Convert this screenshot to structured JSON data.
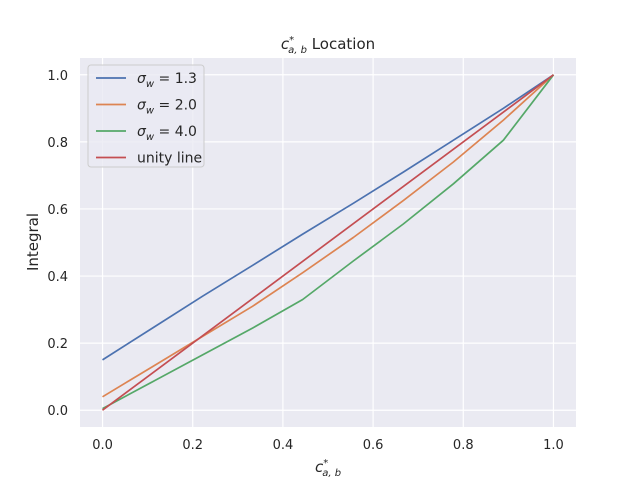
{
  "chart_data": {
    "type": "line",
    "title": {
      "base": "c",
      "sup": "*",
      "sub": "a, b",
      "rest": " Location"
    },
    "xlabel": {
      "base": "c",
      "sup": "*",
      "sub": "a, b"
    },
    "ylabel": "Integral",
    "xlim": [
      -0.05,
      1.05
    ],
    "ylim": [
      -0.05,
      1.05
    ],
    "xticks": [
      0.0,
      0.2,
      0.4,
      0.6,
      0.8,
      1.0
    ],
    "xtick_labels": [
      "0.0",
      "0.2",
      "0.4",
      "0.6",
      "0.8",
      "1.0"
    ],
    "yticks": [
      0.0,
      0.2,
      0.4,
      0.6,
      0.8,
      1.0
    ],
    "ytick_labels": [
      "0.0",
      "0.2",
      "0.4",
      "0.6",
      "0.8",
      "1.0"
    ],
    "grid": true,
    "legend_position": "top-left",
    "background_color": "#eaeaf2",
    "grid_color": "#ffffff",
    "series": [
      {
        "name": "σw = 1.3",
        "legend": {
          "greek": "σ",
          "sub": "w",
          "rest": " = 1.3"
        },
        "color": "#4c72b0",
        "x": [
          0.0,
          0.111,
          0.222,
          0.333,
          0.444,
          0.556,
          0.667,
          0.778,
          0.889,
          1.0
        ],
        "y": [
          0.15,
          0.245,
          0.34,
          0.432,
          0.525,
          0.617,
          0.71,
          0.805,
          0.9,
          1.0
        ]
      },
      {
        "name": "σw = 2.0",
        "legend": {
          "greek": "σ",
          "sub": "w",
          "rest": " = 2.0"
        },
        "color": "#dd8452",
        "x": [
          0.0,
          0.111,
          0.222,
          0.333,
          0.444,
          0.556,
          0.667,
          0.778,
          0.889,
          1.0
        ],
        "y": [
          0.04,
          0.13,
          0.22,
          0.31,
          0.41,
          0.515,
          0.625,
          0.74,
          0.865,
          1.0
        ]
      },
      {
        "name": "σw = 4.0",
        "legend": {
          "greek": "σ",
          "sub": "w",
          "rest": " = 4.0"
        },
        "color": "#55a868",
        "x": [
          0.0,
          0.111,
          0.222,
          0.333,
          0.444,
          0.556,
          0.667,
          0.778,
          0.889,
          1.0
        ],
        "y": [
          0.005,
          0.085,
          0.165,
          0.245,
          0.33,
          0.445,
          0.555,
          0.675,
          0.805,
          1.0
        ]
      },
      {
        "name": "unity line",
        "legend": {
          "greek": "",
          "sub": "",
          "rest": "unity line"
        },
        "color": "#c44e52",
        "x": [
          0.0,
          1.0
        ],
        "y": [
          0.0,
          1.0
        ]
      }
    ]
  }
}
